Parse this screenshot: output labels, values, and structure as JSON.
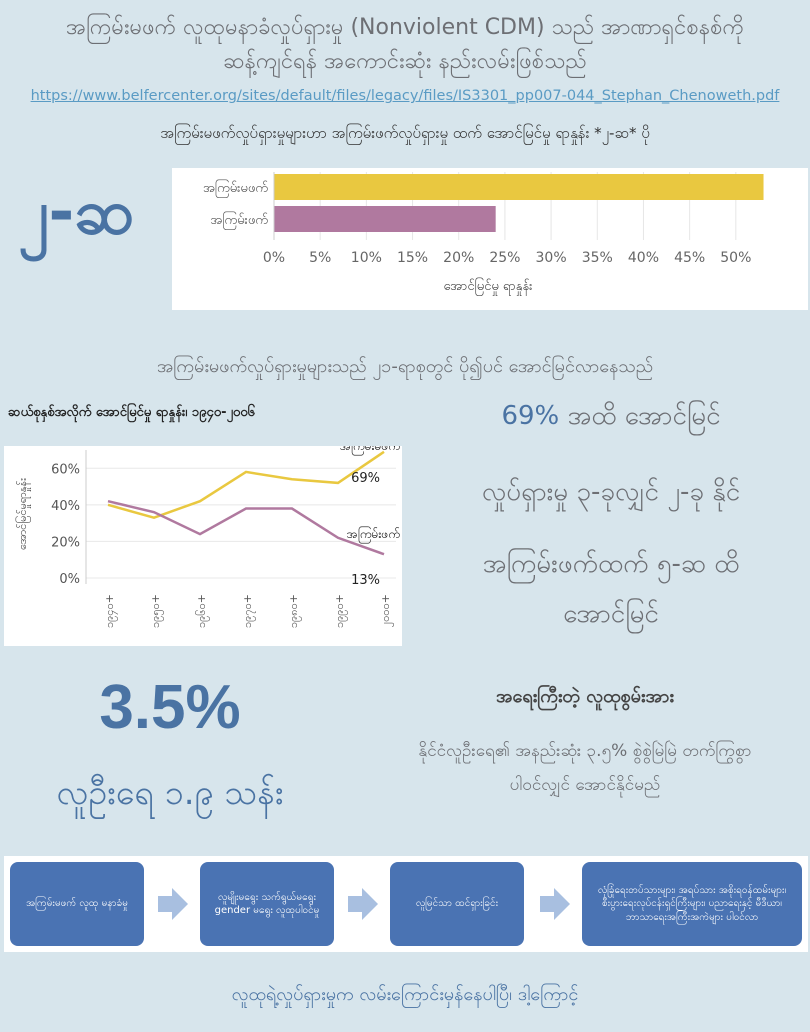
{
  "header": {
    "title_line1": "အကြမ်းမဖက် လူထုမနာခံလှုပ်ရှားမှု (Nonviolent CDM) သည် အာဏာရှင်စနစ်ကို",
    "title_line2": "ဆန့်ကျင်ရန် အကောင်းဆုံး နည်းလမ်းဖြစ်သည်",
    "source_url": "https://www.belfercenter.org/sites/default/files/legacy/files/IS3301_pp007-044_Stephan_Chenoweth.pdf"
  },
  "section1": {
    "big_number": "၂-ဆ",
    "colors": {
      "nonviolent": "#e9c840",
      "violent": "#b0799f"
    }
  },
  "section2": {
    "heading": "အကြမ်းမဖက်လှုပ်ရှားမှုများသည် ၂၁-ရာစုတွင် ပို၍ပင် အောင်မြင်လာနေသည်",
    "stat_pct": "69%",
    "stat_pct_suffix": " အထိ အောင်မြင်",
    "stat_line2": "လှုပ်ရှားမှု ၃-ခုလျှင် ၂-ခု နိုင်",
    "stat_line3": "အကြမ်းဖက်ထက် ၅-ဆ ထိ",
    "stat_line4": "အောင်မြင်"
  },
  "section3": {
    "big_pct": "3.5%",
    "big_sub": "လူဦးရေ ၁.၉ သန်း",
    "heading": "အရေးကြီးတဲ့ လူထုစွမ်းအား",
    "text_line1": "နိုင်ငံလူဦးရေ၏ အနည်းဆုံး ၃.၅% စွဲစွဲမြဲမြဲ တက်ကြွစွာ",
    "text_line2": "ပါဝင်လျှင် အောင်နိုင်မည်"
  },
  "flow": {
    "steps": [
      "အကြမ်းမဖက် လူထု မနာခံမှု",
      "လူမျိုးမရွေး သက်ရွယ်မရွေး gender မရွေး လူထုပါဝင်မှု",
      "လူမြင်သာ ထင်ရှားခြင်း",
      "လုံခြုံရေးတပ်သားများ၊ အရပ်သား အစိုးရဝန်ထမ်းများ၊ စီးပွားရေးလုပ်ငန်းရှင်ကြီးများ၊ ပညာရေးနှင့် မီဒီယာ၊ ဘာသာရေးအကြီးအကဲများ ပါဝင်လာ"
    ]
  },
  "footer": {
    "text": "လူထုရဲ့လှုပ်ရှားမှုက လမ်းကြောင်းမှန်နေပါပြီ၊ ဒါ့ကြောင့်"
  },
  "chart_data": [
    {
      "type": "bar",
      "orientation": "horizontal",
      "title": "အကြမ်းမဖက်လှုပ်ရှားမှုများဟာ အကြမ်းဖက်လှုပ်ရှားမှု ထက် အောင်မြင်မှု ရာနှုန်း *၂-ဆ* ပို",
      "categories": [
        "အကြမ်းမဖက်",
        "အကြမ်းဖက်"
      ],
      "values": [
        53,
        24
      ],
      "xlabel": "အောင်မြင်မှု ရာနှုန်း",
      "xlim": [
        0,
        55
      ],
      "xticks": [
        "0%",
        "5%",
        "10%",
        "15%",
        "20%",
        "25%",
        "30%",
        "35%",
        "40%",
        "45%",
        "50%"
      ],
      "grid": true
    },
    {
      "type": "line",
      "title": "ဆယ်စုနှစ်အလိုက် အောင်မြင်မှု ရာနှုန်း၊ ၁၉၄၀-၂၀၀၆",
      "ylabel": "အောင်မြင်မှုရာနှုန်း",
      "x": [
        "၁၉၄၀+",
        "၁၉၅၀+",
        "၁၉၆၀+",
        "၁၉၇၀+",
        "၁၉၈၀+",
        "၁၉၉၀+",
        "၂၀၀၀+"
      ],
      "ylim": [
        0,
        70
      ],
      "yticks": [
        "0%",
        "20%",
        "40%",
        "60%"
      ],
      "series": [
        {
          "name": "အကြမ်းမဖက်",
          "values": [
            40,
            33,
            42,
            58,
            54,
            52,
            69
          ],
          "end_label": "69%"
        },
        {
          "name": "အကြမ်းဖက်",
          "values": [
            42,
            36,
            24,
            38,
            38,
            22,
            13
          ],
          "end_label": "13%"
        }
      ],
      "grid": true
    }
  ]
}
